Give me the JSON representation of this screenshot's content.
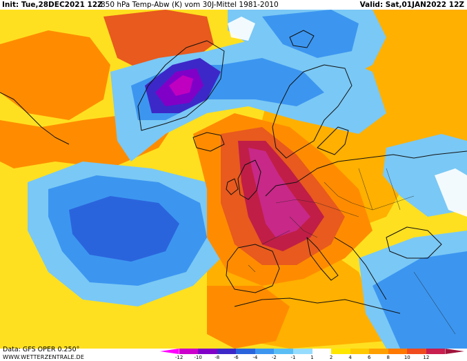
{
  "header": {
    "init": "Init: Tue,28DEC2021 12Z",
    "title": "850 hPa Temp-Abw (K) vom 30J-Mittel 1981-2010",
    "valid": "Valid: Sat,01JAN2022 12Z"
  },
  "footer": {
    "data_source": "Data: GFS OPER 0.250°",
    "website": "WWW.WETTERZENTRALE.DE"
  },
  "legend": {
    "ticks": [
      "-12",
      "-10",
      "-8",
      "-6",
      "-4",
      "-2",
      "-1",
      "1",
      "2",
      "4",
      "6",
      "8",
      "10",
      "12"
    ],
    "colors": [
      "#ff00ff",
      "#cc00cc",
      "#8000c8",
      "#3c28c8",
      "#2a64dc",
      "#3c96f0",
      "#5abef5",
      "#96dcff",
      "#ffffff",
      "#ffe600",
      "#ffc800",
      "#ffa000",
      "#ff7800",
      "#f04b1e",
      "#c81e50",
      "#a0143c"
    ]
  },
  "map": {
    "colors": {
      "yellow": "#ffe020",
      "lightorange": "#ffb000",
      "orange": "#ff8c00",
      "redorange": "#e85a1e",
      "crimson": "#c01e46",
      "magenta": "#c82888",
      "lightblue": "#7ac8f5",
      "blue": "#3c96f0",
      "darkblue": "#2a64dc",
      "indigo": "#3c28c8",
      "violet": "#8000c8",
      "purple": "#c000c0",
      "white": "#ffffff",
      "coast": "#111111"
    }
  }
}
